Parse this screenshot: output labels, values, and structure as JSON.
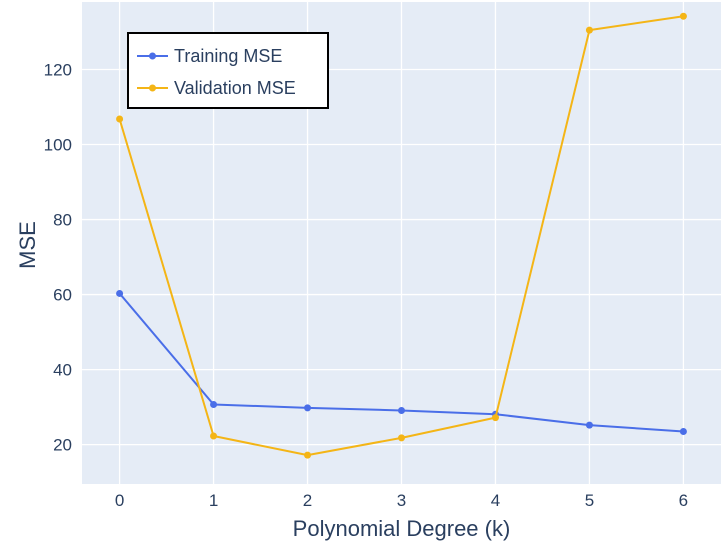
{
  "chart_data": {
    "type": "line",
    "x": [
      0,
      1,
      2,
      3,
      4,
      5,
      6
    ],
    "series": [
      {
        "name": "Training MSE",
        "color": "#4a6ee8",
        "values": [
          60.3,
          30.7,
          29.8,
          29.1,
          28.1,
          25.2,
          23.5
        ]
      },
      {
        "name": "Validation MSE",
        "color": "#f4b516",
        "values": [
          106.8,
          22.3,
          17.2,
          21.8,
          27.2,
          130.5,
          134.2
        ]
      }
    ],
    "xlabel": "Polynomial Degree (k)",
    "ylabel": "MSE",
    "xlim": [
      -0.4,
      6.4
    ],
    "ylim": [
      9.5,
      138
    ],
    "xticks": [
      0,
      1,
      2,
      3,
      4,
      5,
      6
    ],
    "yticks": [
      20,
      40,
      60,
      80,
      100,
      120
    ],
    "grid": true,
    "legend_position": "top-left",
    "plot_background": "#e5ecf6",
    "text_color": "#2a3f5f"
  }
}
